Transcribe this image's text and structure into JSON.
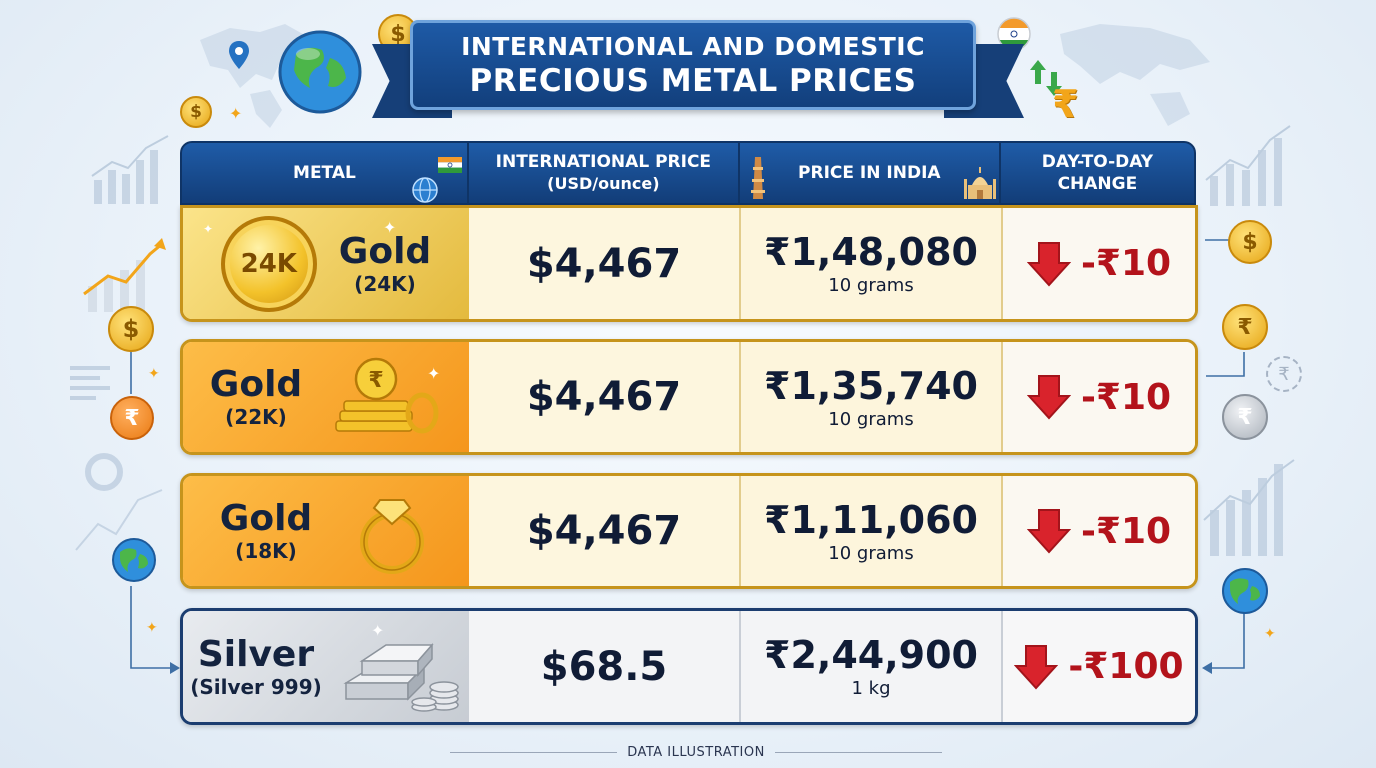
{
  "title": {
    "line1": "INTERNATIONAL AND DOMESTIC",
    "line2": "PRECIOUS METAL PRICES"
  },
  "table": {
    "headers": [
      "METAL",
      "INTERNATIONAL PRICE (USD/ounce)",
      "PRICE IN INDIA",
      "DAY-TO-DAY CHANGE"
    ],
    "header_lines": {
      "intl_1": "INTERNATIONAL PRICE",
      "intl_2": "(USD/ounce)",
      "change_1": "DAY-TO-DAY",
      "change_2": "CHANGE"
    },
    "rows": [
      {
        "metal": "Gold",
        "purity": "(24K)",
        "badge": "24K",
        "intl_price": "$4,467",
        "india_price": "₹1,48,080",
        "unit": "10 grams",
        "change": "-₹10",
        "direction": "down"
      },
      {
        "metal": "Gold",
        "purity": "(22K)",
        "intl_price": "$4,467",
        "india_price": "₹1,35,740",
        "unit": "10 grams",
        "change": "-₹10",
        "direction": "down"
      },
      {
        "metal": "Gold",
        "purity": "(18K)",
        "intl_price": "$4,467",
        "india_price": "₹1,11,060",
        "unit": "10 grams",
        "change": "-₹10",
        "direction": "down"
      },
      {
        "metal": "Silver",
        "purity": "(Silver 999)",
        "intl_price": "$68.5",
        "india_price": "₹2,44,900",
        "unit": "1 kg",
        "change": "-₹100",
        "direction": "down"
      }
    ]
  },
  "footer": "DATA ILLUSTRATION",
  "coin_symbols": {
    "dollar": "$",
    "rupee": "₹"
  },
  "colors": {
    "header_blue": "#1a4f92",
    "gold_24k": "#e9c04a",
    "gold_orange": "#f7a22a",
    "silver": "#d3d7dd",
    "change_red": "#b3131b"
  },
  "icons": [
    "globe-icon",
    "dollar-coin-icon",
    "rupee-coin-icon",
    "india-flag-icon",
    "down-arrow-icon",
    "ring-icon",
    "silver-bars-icon",
    "gold-coins-icon",
    "qutub-minar-icon",
    "taj-mahal-icon",
    "map-pin-icon",
    "trend-chart-icon"
  ]
}
